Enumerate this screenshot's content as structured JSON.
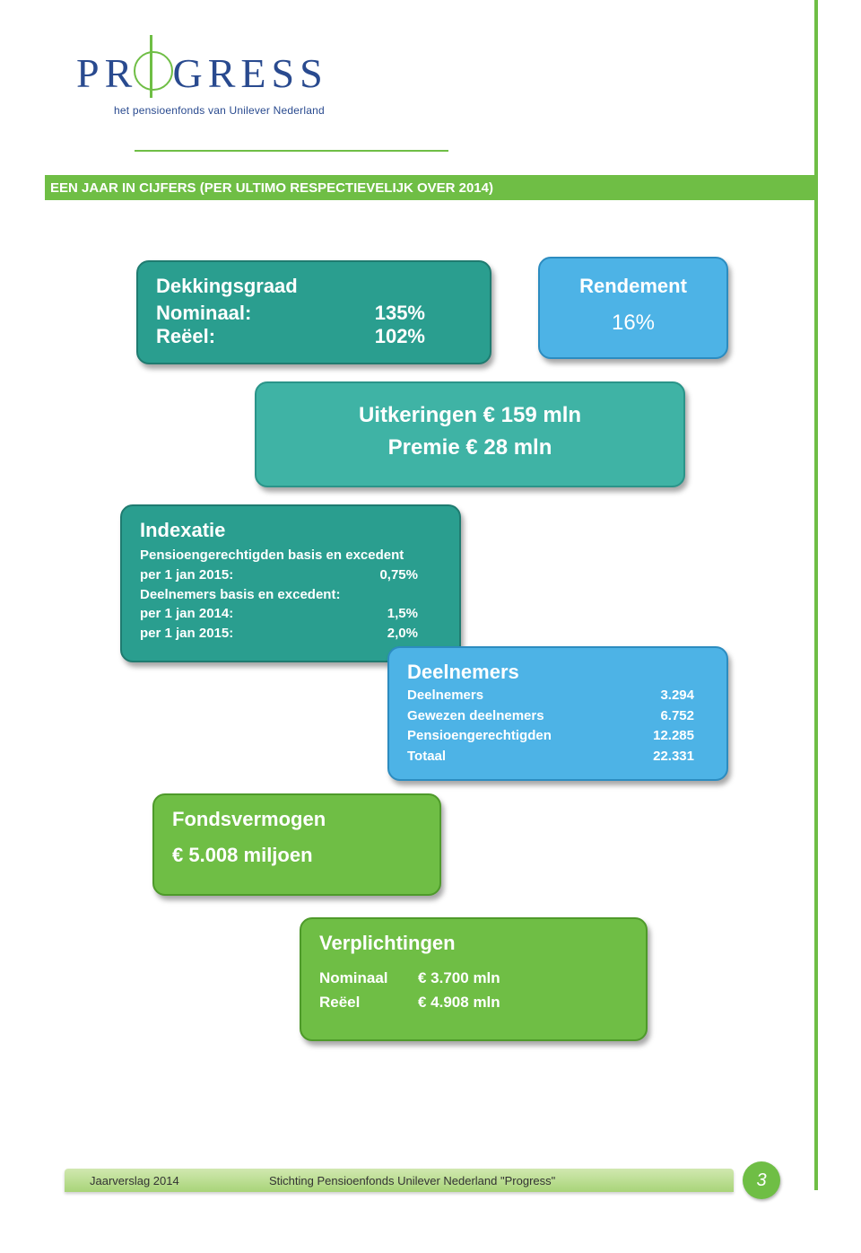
{
  "logo": {
    "word_left": "PR",
    "word_o": "O",
    "word_right": "GRESS",
    "tagline": "het pensioenfonds van Unilever Nederland"
  },
  "title_bar": "EEN JAAR IN CIJFERS (PER ULTIMO RESPECTIEVELIJK OVER 2014)",
  "dekkingsgraad": {
    "heading": "Dekkingsgraad",
    "nominaal_label": "Nominaal:",
    "nominaal_value": "135%",
    "reeel_label": "Reëel:",
    "reeel_value": "102%"
  },
  "rendement": {
    "heading": "Rendement",
    "value": "16%"
  },
  "uitkeringen": {
    "line1": "Uitkeringen € 159 mln",
    "line2": "Premie € 28 mln"
  },
  "indexatie": {
    "heading": "Indexatie",
    "line1": "Pensioengerechtigden basis en excedent",
    "r1_label": "per 1 jan 2015:",
    "r1_value": "0,75%",
    "line2": "Deelnemers basis en excedent:",
    "r2_label": "per 1 jan 2014:",
    "r2_value": "1,5%",
    "r3_label": "per 1 jan 2015:",
    "r3_value": "2,0%"
  },
  "deelnemers": {
    "heading": "Deelnemers",
    "r1_label": "Deelnemers",
    "r1_value": "3.294",
    "r2_label": "Gewezen deelnemers",
    "r2_value": "6.752",
    "r3_label": "Pensioengerechtigden",
    "r3_value": "12.285",
    "r4_label": "Totaal",
    "r4_value": "22.331"
  },
  "fondsvermogen": {
    "heading": "Fondsvermogen",
    "value": "€ 5.008 miljoen"
  },
  "verplichtingen": {
    "heading": "Verplichtingen",
    "r1_label": "Nominaal",
    "r1_value": "€  3.700 mln",
    "r2_label": "Reëel",
    "r2_value": "€  4.908  mln"
  },
  "footer": {
    "left": "Jaarverslag 2014",
    "center": "Stichting Pensioenfonds Unilever Nederland \"Progress\"",
    "page": "3"
  },
  "colors": {
    "green": "#6fbe45",
    "teal_dark": "#2a9e8f",
    "teal_light": "#3fb3a5",
    "blue": "#4db3e6",
    "navy": "#294a8f"
  }
}
